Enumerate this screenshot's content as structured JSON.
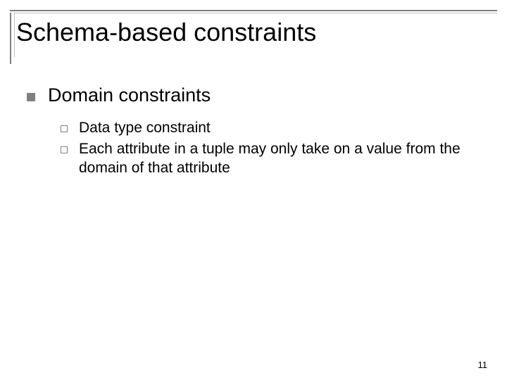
{
  "slide": {
    "title": "Schema-based constraints",
    "title_fontsize": 36,
    "title_color": "#000000",
    "border_outer_color": "#808080",
    "border_inner_color": "#c0c0c0",
    "background_color": "#ffffff",
    "level1": {
      "bullet_color": "#808080",
      "bullet_style": "filled-square",
      "fontsize": 27,
      "text": "Domain constraints"
    },
    "level2": {
      "bullet_color": "#808080",
      "bullet_style": "hollow-square",
      "fontsize": 21,
      "items": [
        "Data type constraint",
        "Each attribute in a tuple may only take on a value from the domain of that attribute"
      ]
    },
    "page_number": "11",
    "page_number_fontsize": 13
  }
}
